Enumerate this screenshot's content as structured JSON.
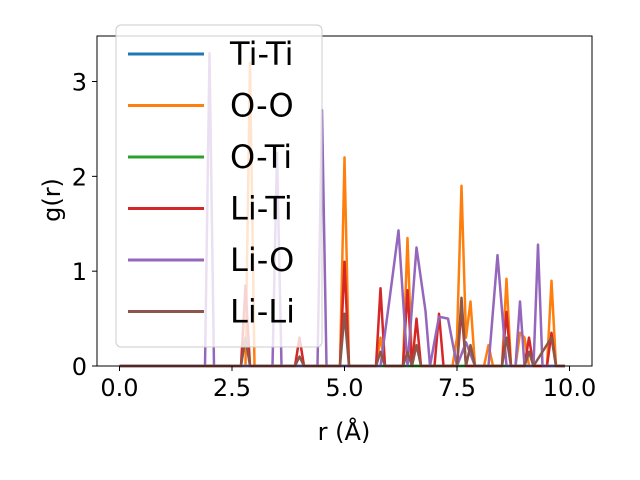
{
  "chart_data": {
    "type": "line",
    "title": "",
    "xlabel": "r (Å)",
    "ylabel": "g(r)",
    "xlim": [
      -0.5,
      10.5
    ],
    "ylim": [
      0,
      3.48
    ],
    "xticks": [
      0.0,
      2.5,
      5.0,
      7.5,
      10.0
    ],
    "xtick_labels": [
      "0.0",
      "2.5",
      "5.0",
      "7.5",
      "10.0"
    ],
    "yticks": [
      0,
      1,
      2,
      3
    ],
    "ytick_labels": [
      "0",
      "1",
      "2",
      "3"
    ],
    "grid": false,
    "legend_position": "upper-left",
    "series": [
      {
        "name": "Ti-Ti",
        "color": "#1f77b4",
        "points": [
          [
            0,
            0
          ],
          [
            9.9,
            0
          ]
        ]
      },
      {
        "name": "O-O",
        "color": "#ff7f0e",
        "points": [
          [
            0,
            0
          ],
          [
            2.8,
            0
          ],
          [
            2.9,
            3.2
          ],
          [
            3.0,
            0
          ],
          [
            4.9,
            0
          ],
          [
            5.0,
            2.2
          ],
          [
            5.1,
            0
          ],
          [
            5.7,
            0
          ],
          [
            5.8,
            0.3
          ],
          [
            5.9,
            0
          ],
          [
            6.3,
            0
          ],
          [
            6.4,
            1.35
          ],
          [
            6.5,
            0
          ],
          [
            7.4,
            0
          ],
          [
            7.5,
            0.3
          ],
          [
            7.6,
            1.9
          ],
          [
            7.7,
            0.3
          ],
          [
            7.8,
            0.68
          ],
          [
            7.9,
            0
          ],
          [
            8.1,
            0
          ],
          [
            8.2,
            0.22
          ],
          [
            8.3,
            0
          ],
          [
            8.5,
            0
          ],
          [
            8.6,
            0.92
          ],
          [
            8.7,
            0
          ],
          [
            8.8,
            0
          ],
          [
            8.9,
            0.35
          ],
          [
            9.0,
            0.3
          ],
          [
            9.1,
            0
          ],
          [
            9.5,
            0
          ],
          [
            9.6,
            0.9
          ],
          [
            9.7,
            0
          ],
          [
            9.9,
            0
          ]
        ]
      },
      {
        "name": "O-Ti",
        "color": "#2ca02c",
        "points": [
          [
            0,
            0
          ],
          [
            9.9,
            0
          ]
        ]
      },
      {
        "name": "Li-Ti",
        "color": "#d62728",
        "points": [
          [
            0,
            0
          ],
          [
            2.7,
            0
          ],
          [
            2.8,
            0.85
          ],
          [
            2.9,
            0
          ],
          [
            3.9,
            0
          ],
          [
            4.0,
            0.3
          ],
          [
            4.1,
            0
          ],
          [
            4.9,
            0
          ],
          [
            5.0,
            1.1
          ],
          [
            5.1,
            0
          ],
          [
            5.7,
            0
          ],
          [
            5.8,
            0.82
          ],
          [
            5.9,
            0
          ],
          [
            6.3,
            0
          ],
          [
            6.4,
            0.8
          ],
          [
            6.5,
            0
          ],
          [
            6.6,
            0.5
          ],
          [
            6.7,
            0
          ],
          [
            7.0,
            0
          ],
          [
            7.1,
            0.55
          ],
          [
            7.2,
            0
          ],
          [
            7.5,
            0
          ],
          [
            7.6,
            0.6
          ],
          [
            7.7,
            0
          ],
          [
            8.5,
            0
          ],
          [
            8.6,
            0.57
          ],
          [
            8.7,
            0
          ],
          [
            9.0,
            0
          ],
          [
            9.1,
            0.3
          ],
          [
            9.2,
            0
          ],
          [
            9.5,
            0
          ],
          [
            9.6,
            0.35
          ],
          [
            9.7,
            0
          ],
          [
            9.9,
            0
          ]
        ]
      },
      {
        "name": "Li-O",
        "color": "#9467bd",
        "points": [
          [
            0,
            0
          ],
          [
            1.9,
            0
          ],
          [
            2.0,
            3.3
          ],
          [
            2.1,
            0
          ],
          [
            3.4,
            0
          ],
          [
            3.5,
            2.25
          ],
          [
            3.6,
            0
          ],
          [
            4.4,
            0
          ],
          [
            4.5,
            2.7
          ],
          [
            4.6,
            0
          ],
          [
            5.8,
            0
          ],
          [
            6.0,
            0.7
          ],
          [
            6.2,
            1.43
          ],
          [
            6.4,
            0
          ],
          [
            6.6,
            1.25
          ],
          [
            6.8,
            0.58
          ],
          [
            6.9,
            0
          ],
          [
            7.1,
            0.52
          ],
          [
            7.3,
            0.5
          ],
          [
            7.5,
            0
          ],
          [
            7.7,
            0.25
          ],
          [
            7.9,
            0
          ],
          [
            8.2,
            0
          ],
          [
            8.4,
            1.17
          ],
          [
            8.6,
            0
          ],
          [
            8.8,
            0
          ],
          [
            8.9,
            0.68
          ],
          [
            9.0,
            0
          ],
          [
            9.2,
            0
          ],
          [
            9.3,
            1.28
          ],
          [
            9.4,
            0
          ],
          [
            9.6,
            0
          ],
          [
            9.9,
            0
          ]
        ]
      },
      {
        "name": "Li-Li",
        "color": "#8c564b",
        "points": [
          [
            0,
            0
          ],
          [
            2.7,
            0
          ],
          [
            2.8,
            0.3
          ],
          [
            2.9,
            0
          ],
          [
            3.9,
            0
          ],
          [
            4.0,
            0.1
          ],
          [
            4.1,
            0
          ],
          [
            4.9,
            0
          ],
          [
            5.0,
            0.55
          ],
          [
            5.1,
            0
          ],
          [
            5.7,
            0
          ],
          [
            5.8,
            0.15
          ],
          [
            5.9,
            0
          ],
          [
            6.3,
            0
          ],
          [
            6.4,
            0.15
          ],
          [
            6.5,
            0
          ],
          [
            6.6,
            0.22
          ],
          [
            6.7,
            0
          ],
          [
            7.5,
            0
          ],
          [
            7.6,
            0.72
          ],
          [
            7.7,
            0
          ],
          [
            7.8,
            0.22
          ],
          [
            7.9,
            0
          ],
          [
            8.5,
            0
          ],
          [
            8.6,
            0.3
          ],
          [
            8.7,
            0
          ],
          [
            9.0,
            0
          ],
          [
            9.1,
            0.15
          ],
          [
            9.2,
            0
          ],
          [
            9.6,
            0.3
          ],
          [
            9.7,
            0
          ],
          [
            9.9,
            0
          ]
        ]
      }
    ]
  }
}
